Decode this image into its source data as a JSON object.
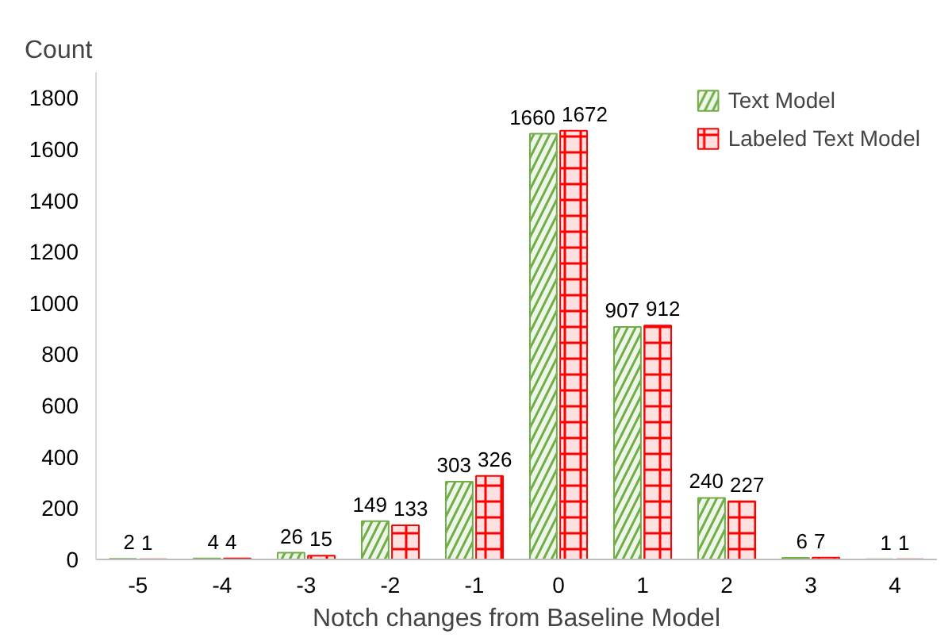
{
  "chart_data": {
    "type": "bar",
    "ylabel": "Count",
    "xlabel": "Notch changes from Baseline Model",
    "categories": [
      "-5",
      "-4",
      "-3",
      "-2",
      "-1",
      "0",
      "1",
      "2",
      "3",
      "4"
    ],
    "series": [
      {
        "name": "Text Model",
        "color": "#70ad47",
        "values": [
          2,
          4,
          26,
          149,
          303,
          1660,
          907,
          240,
          6,
          1
        ]
      },
      {
        "name": "Labeled Text Model",
        "color": "#ff0000",
        "values": [
          1,
          4,
          15,
          133,
          326,
          1672,
          912,
          227,
          7,
          1
        ]
      }
    ],
    "ylim": [
      0,
      1900
    ],
    "yticks": [
      0,
      200,
      400,
      600,
      800,
      1000,
      1200,
      1400,
      1600,
      1800
    ],
    "grid": false,
    "legend": "top right",
    "data_labels": true
  }
}
